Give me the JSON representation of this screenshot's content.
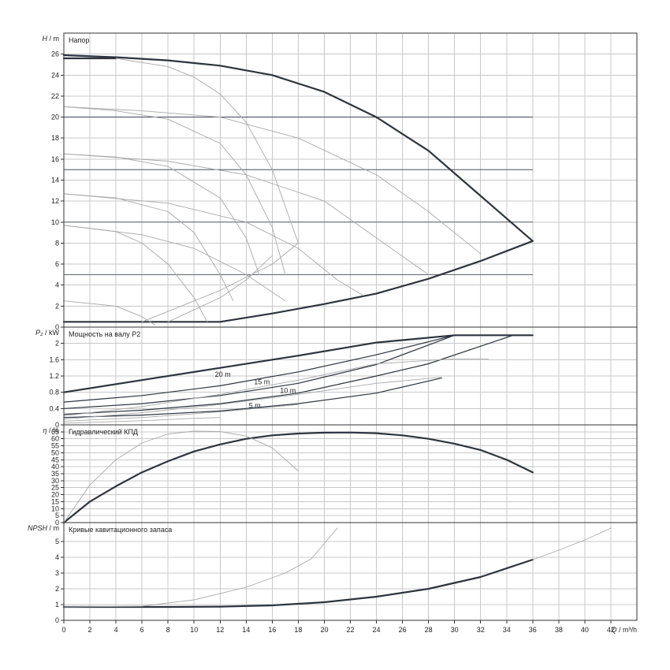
{
  "colors": {
    "main": "#2c3440",
    "light": "#a8a8a8",
    "grid": "#c8c8c8",
    "axis": "#333333"
  },
  "chart_data": {
    "type": "line",
    "x_axis": {
      "label_italic": "Q",
      "unit": " / m³/h",
      "range": [
        0,
        44
      ],
      "ticks": [
        0,
        2,
        4,
        6,
        8,
        10,
        12,
        14,
        16,
        18,
        20,
        22,
        24,
        26,
        28,
        30,
        32,
        34,
        36,
        38,
        40,
        42
      ]
    },
    "panels": [
      {
        "id": "head",
        "title": "Напор",
        "y_label_italic": "H",
        "y_unit": " / m",
        "ylim": [
          0,
          28
        ],
        "yticks": [
          0,
          2,
          4,
          6,
          8,
          10,
          12,
          14,
          16,
          18,
          20,
          22,
          24,
          26
        ],
        "horizontal_lines": [
          5,
          10,
          15,
          20
        ],
        "series": [
          {
            "style": "main",
            "points": [
              [
                0,
                25.9
              ],
              [
                4,
                25.7
              ],
              [
                8,
                25.4
              ],
              [
                12,
                24.9
              ],
              [
                16,
                24.0
              ],
              [
                20,
                22.4
              ],
              [
                24,
                20.0
              ],
              [
                28,
                16.8
              ],
              [
                32,
                12.5
              ],
              [
                36,
                8.2
              ]
            ]
          },
          {
            "style": "main",
            "points": [
              [
                0,
                25.6
              ],
              [
                4,
                25.6
              ]
            ]
          },
          {
            "style": "main",
            "points": [
              [
                0,
                0.5
              ],
              [
                6,
                0.5
              ],
              [
                12,
                0.5
              ],
              [
                16,
                1.3
              ],
              [
                20,
                2.2
              ],
              [
                24,
                3.2
              ],
              [
                28,
                4.6
              ],
              [
                32,
                6.3
              ],
              [
                36,
                8.2
              ]
            ]
          },
          {
            "style": "light",
            "points": [
              [
                4,
                25.6
              ],
              [
                8,
                24.8
              ],
              [
                10,
                23.8
              ],
              [
                12,
                22.2
              ],
              [
                14,
                19.5
              ],
              [
                16,
                15.0
              ],
              [
                18,
                8.0
              ]
            ]
          },
          {
            "style": "light",
            "points": [
              [
                0,
                21.0
              ],
              [
                4,
                20.6
              ],
              [
                8,
                19.8
              ],
              [
                12,
                17.5
              ],
              [
                14,
                14.5
              ],
              [
                16,
                9.5
              ],
              [
                17,
                5.0
              ]
            ]
          },
          {
            "style": "light",
            "points": [
              [
                0,
                16.5
              ],
              [
                4,
                16.2
              ],
              [
                8,
                15.3
              ],
              [
                12,
                12.3
              ],
              [
                14,
                8.5
              ],
              [
                15,
                5.0
              ]
            ]
          },
          {
            "style": "light",
            "points": [
              [
                0,
                12.7
              ],
              [
                4,
                12.3
              ],
              [
                8,
                11.0
              ],
              [
                10,
                9.0
              ],
              [
                12,
                5.0
              ],
              [
                13,
                2.5
              ]
            ]
          },
          {
            "style": "light",
            "points": [
              [
                0,
                9.7
              ],
              [
                4,
                9.1
              ],
              [
                6,
                8.0
              ],
              [
                8,
                6.0
              ],
              [
                10,
                2.8
              ],
              [
                11,
                0.5
              ]
            ]
          },
          {
            "style": "light",
            "points": [
              [
                0,
                2.5
              ],
              [
                4,
                2.0
              ],
              [
                6,
                1.0
              ],
              [
                7,
                0.2
              ]
            ]
          },
          {
            "style": "light",
            "points": [
              [
                0,
                21.0
              ],
              [
                6,
                20.6
              ],
              [
                12,
                20.0
              ],
              [
                18,
                18.0
              ],
              [
                24,
                14.5
              ],
              [
                28,
                11.0
              ],
              [
                32,
                7.0
              ]
            ]
          },
          {
            "style": "light",
            "points": [
              [
                0,
                16.5
              ],
              [
                8,
                15.8
              ],
              [
                14,
                14.5
              ],
              [
                20,
                12.0
              ],
              [
                24,
                8.5
              ],
              [
                28,
                5.0
              ]
            ]
          },
          {
            "style": "light",
            "points": [
              [
                0,
                12.7
              ],
              [
                8,
                11.8
              ],
              [
                14,
                10.0
              ],
              [
                18,
                7.5
              ],
              [
                21,
                4.5
              ],
              [
                23,
                3.0
              ]
            ]
          },
          {
            "style": "light",
            "points": [
              [
                0,
                9.7
              ],
              [
                6,
                8.8
              ],
              [
                10,
                7.5
              ],
              [
                14,
                5.0
              ],
              [
                17,
                2.5
              ]
            ]
          },
          {
            "style": "light",
            "points": [
              [
                6,
                0.5
              ],
              [
                12,
                3.5
              ],
              [
                16,
                6.0
              ],
              [
                18,
                8.0
              ]
            ]
          },
          {
            "style": "light",
            "points": [
              [
                8,
                0.5
              ],
              [
                12,
                2.8
              ],
              [
                14,
                4.5
              ],
              [
                16,
                6.8
              ]
            ]
          }
        ]
      },
      {
        "id": "power",
        "title": "Мощность на валу P2",
        "y_label_italic": "P₂",
        "y_unit": " / kW",
        "ylim": [
          0,
          2.4
        ],
        "yticks": [
          0,
          0.4,
          0.8,
          1.2,
          1.6,
          2
        ],
        "curve_labels": [
          {
            "text": "20 m",
            "x": 11.6,
            "y": 1.18
          },
          {
            "text": "15 m",
            "x": 14.6,
            "y": 1.0
          },
          {
            "text": "10 m",
            "x": 16.6,
            "y": 0.78
          },
          {
            "text": "5 m",
            "x": 14.2,
            "y": 0.42
          }
        ],
        "series": [
          {
            "style": "main",
            "points": [
              [
                0,
                0.8
              ],
              [
                6,
                1.1
              ],
              [
                12,
                1.4
              ],
              [
                18,
                1.7
              ],
              [
                24,
                2.02
              ],
              [
                30,
                2.2
              ],
              [
                36,
                2.2
              ]
            ]
          },
          {
            "style": "main",
            "points": [
              [
                0,
                0.56
              ],
              [
                6,
                0.72
              ],
              [
                12,
                0.96
              ],
              [
                18,
                1.3
              ],
              [
                24,
                1.72
              ],
              [
                30,
                2.2
              ],
              [
                34,
                2.2
              ]
            ]
          },
          {
            "style": "main",
            "points": [
              [
                0,
                0.4
              ],
              [
                6,
                0.52
              ],
              [
                12,
                0.72
              ],
              [
                18,
                1.02
              ],
              [
                24,
                1.48
              ],
              [
                30,
                2.2
              ]
            ]
          },
          {
            "style": "main",
            "points": [
              [
                0,
                0.26
              ],
              [
                6,
                0.36
              ],
              [
                12,
                0.52
              ],
              [
                18,
                0.78
              ],
              [
                24,
                1.2
              ],
              [
                28,
                1.5
              ],
              [
                34.5,
                2.2
              ]
            ]
          },
          {
            "style": "main",
            "points": [
              [
                0,
                0.18
              ],
              [
                6,
                0.24
              ],
              [
                12,
                0.34
              ],
              [
                18,
                0.52
              ],
              [
                24,
                0.78
              ],
              [
                29,
                1.15
              ]
            ]
          },
          {
            "style": "light",
            "points": [
              [
                0,
                0.22
              ],
              [
                6,
                0.45
              ],
              [
                12,
                0.75
              ],
              [
                18,
                1.1
              ],
              [
                24,
                1.5
              ],
              [
                30,
                1.62
              ],
              [
                32.6,
                1.62
              ]
            ]
          },
          {
            "style": "light",
            "points": [
              [
                0,
                0.14
              ],
              [
                6,
                0.3
              ],
              [
                12,
                0.5
              ],
              [
                18,
                0.75
              ],
              [
                24,
                1.02
              ],
              [
                29,
                1.17
              ]
            ]
          },
          {
            "style": "light",
            "points": [
              [
                0,
                0.09
              ],
              [
                6,
                0.18
              ],
              [
                12,
                0.32
              ],
              [
                18,
                0.5
              ]
            ]
          },
          {
            "style": "light",
            "points": [
              [
                0,
                0.04
              ],
              [
                6,
                0.1
              ],
              [
                10,
                0.16
              ],
              [
                12,
                0.18
              ]
            ]
          }
        ]
      },
      {
        "id": "efficiency",
        "title": "Гидравлический КПД",
        "y_label_italic": "η",
        "y_unit": " / %",
        "ylim": [
          0,
          70
        ],
        "yticks": [
          0,
          5,
          10,
          15,
          20,
          25,
          30,
          35,
          40,
          45,
          50,
          55,
          60,
          65
        ],
        "series": [
          {
            "style": "main",
            "points": [
              [
                0,
                0
              ],
              [
                2,
                15
              ],
              [
                4,
                26
              ],
              [
                6,
                36
              ],
              [
                8,
                44
              ],
              [
                10,
                51
              ],
              [
                12,
                56
              ],
              [
                14,
                60
              ],
              [
                16,
                62.5
              ],
              [
                18,
                63.8
              ],
              [
                20,
                64.4
              ],
              [
                22,
                64.5
              ],
              [
                24,
                64.0
              ],
              [
                26,
                62.5
              ],
              [
                28,
                60.0
              ],
              [
                30,
                56.5
              ],
              [
                32,
                52.0
              ],
              [
                34,
                45.0
              ],
              [
                36,
                36.0
              ]
            ]
          },
          {
            "style": "light",
            "points": [
              [
                0,
                0
              ],
              [
                2,
                27
              ],
              [
                4,
                45
              ],
              [
                6,
                57
              ],
              [
                8,
                63.5
              ],
              [
                10,
                65.5
              ],
              [
                12,
                65.2
              ],
              [
                14,
                62
              ],
              [
                16,
                53.5
              ],
              [
                18,
                37
              ]
            ]
          }
        ]
      },
      {
        "id": "npsh",
        "title": "Кривые кавитационного запаса",
        "y_label_italic": "NPSH",
        "y_unit": " / m",
        "ylim": [
          0,
          6.2
        ],
        "yticks": [
          0,
          1,
          2,
          3,
          4,
          5
        ],
        "series": [
          {
            "style": "main",
            "points": [
              [
                0,
                0.85
              ],
              [
                8,
                0.85
              ],
              [
                12,
                0.87
              ],
              [
                16,
                0.95
              ],
              [
                20,
                1.15
              ],
              [
                24,
                1.5
              ],
              [
                28,
                2.0
              ],
              [
                32,
                2.75
              ],
              [
                36,
                3.85
              ]
            ]
          },
          {
            "style": "light",
            "points": [
              [
                36,
                3.85
              ],
              [
                38,
                4.45
              ],
              [
                40,
                5.1
              ],
              [
                42,
                5.85
              ]
            ]
          },
          {
            "style": "light",
            "points": [
              [
                0,
                0.85
              ],
              [
                6,
                0.9
              ],
              [
                10,
                1.3
              ],
              [
                14,
                2.1
              ],
              [
                17,
                3.0
              ],
              [
                19,
                3.9
              ],
              [
                21,
                5.85
              ]
            ]
          }
        ]
      }
    ]
  }
}
